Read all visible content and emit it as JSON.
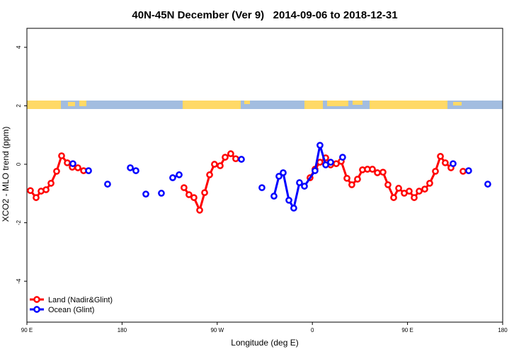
{
  "chart_data": {
    "type": "line",
    "title": "40N-45N December (Ver 9)   2014-09-06 to 2018-12-31",
    "x_label": "Longitude (deg E)",
    "y_label": "XCO2 - MLO trend (ppm)",
    "xlim": [
      90,
      540
    ],
    "xticks": [
      {
        "value": 90,
        "label": "90 E"
      },
      180,
      {
        "value": 270,
        "label": "90 W"
      },
      {
        "value": 360,
        "label": "0"
      },
      {
        "value": 450,
        "label": "90 E"
      },
      {
        "value": 540,
        "label": "180"
      }
    ],
    "ylim": [
      -5.4,
      4.65
    ],
    "yticks": [
      -4,
      -2,
      0,
      2,
      4
    ],
    "legend": "bottom-left",
    "series": [
      {
        "name": "Land (Nadir&Glint)",
        "color": "#ff0000",
        "x": [
          93.3,
          98.7,
          103.4,
          108.1,
          112.8,
          118.1,
          122.8,
          128.2,
          132.9,
          138.2,
          143.6,
          null,
          238.6,
          243.3,
          248.0,
          253.4,
          258.1,
          262.8,
          267.4,
          272.8,
          277.5,
          282.8,
          287.5,
          null,
          357.8,
          362.5,
          367.2,
          372.6,
          377.3,
          382.6,
          387.3,
          392.7,
          397.3,
          402.7,
          407.4,
          412.1,
          416.8,
          421.5,
          426.8,
          431.5,
          436.9,
          441.6,
          446.9,
          451.6,
          456.3,
          461.0,
          466.3,
          471.0,
          476.4,
          481.1,
          485.7,
          491.1,
          null,
          502.5
        ],
        "values": [
          -0.9,
          -1.14,
          -0.92,
          -0.87,
          -0.65,
          -0.24,
          0.29,
          0.05,
          -0.1,
          -0.12,
          -0.22,
          null,
          -0.8,
          -1.04,
          -1.14,
          -1.57,
          -0.97,
          -0.36,
          0,
          -0.05,
          0.24,
          0.36,
          0.19,
          null,
          -0.46,
          -0.17,
          0.07,
          0.22,
          -0.02,
          0.02,
          0.1,
          -0.48,
          -0.7,
          -0.51,
          -0.19,
          -0.17,
          -0.17,
          -0.29,
          -0.27,
          -0.7,
          -1.14,
          -0.82,
          -0.99,
          -0.92,
          -1.14,
          -0.92,
          -0.85,
          -0.65,
          -0.24,
          0.27,
          0.05,
          -0.12,
          null,
          -0.24
        ]
      },
      {
        "name": "Ocean (Glint)",
        "color": "#0000ff",
        "x": [
          133.5,
          null,
          148.3,
          null,
          166.3,
          null,
          187.8,
          193.1,
          null,
          202.5,
          null,
          217.2,
          null,
          227.9,
          234.0,
          null,
          292.9,
          null,
          312.3,
          null,
          323.7,
          328.4,
          332.4,
          337.8,
          342.4,
          347.8,
          352.5,
          362.5,
          367.2,
          372.6,
          377.3,
          null,
          388.6,
          null,
          493.1,
          null,
          507.8,
          null,
          525.9
        ],
        "values": [
          0.02,
          null,
          -0.22,
          null,
          -0.68,
          null,
          -0.12,
          -0.22,
          null,
          -1.02,
          null,
          -0.99,
          null,
          -0.46,
          -0.36,
          null,
          0.17,
          null,
          -0.8,
          null,
          -1.09,
          -0.41,
          -0.29,
          -1.23,
          -1.5,
          -0.63,
          -0.75,
          -0.22,
          0.65,
          -0.02,
          0.07,
          null,
          0.24,
          null,
          0.02,
          null,
          -0.22,
          null,
          -0.68
        ]
      }
    ]
  }
}
